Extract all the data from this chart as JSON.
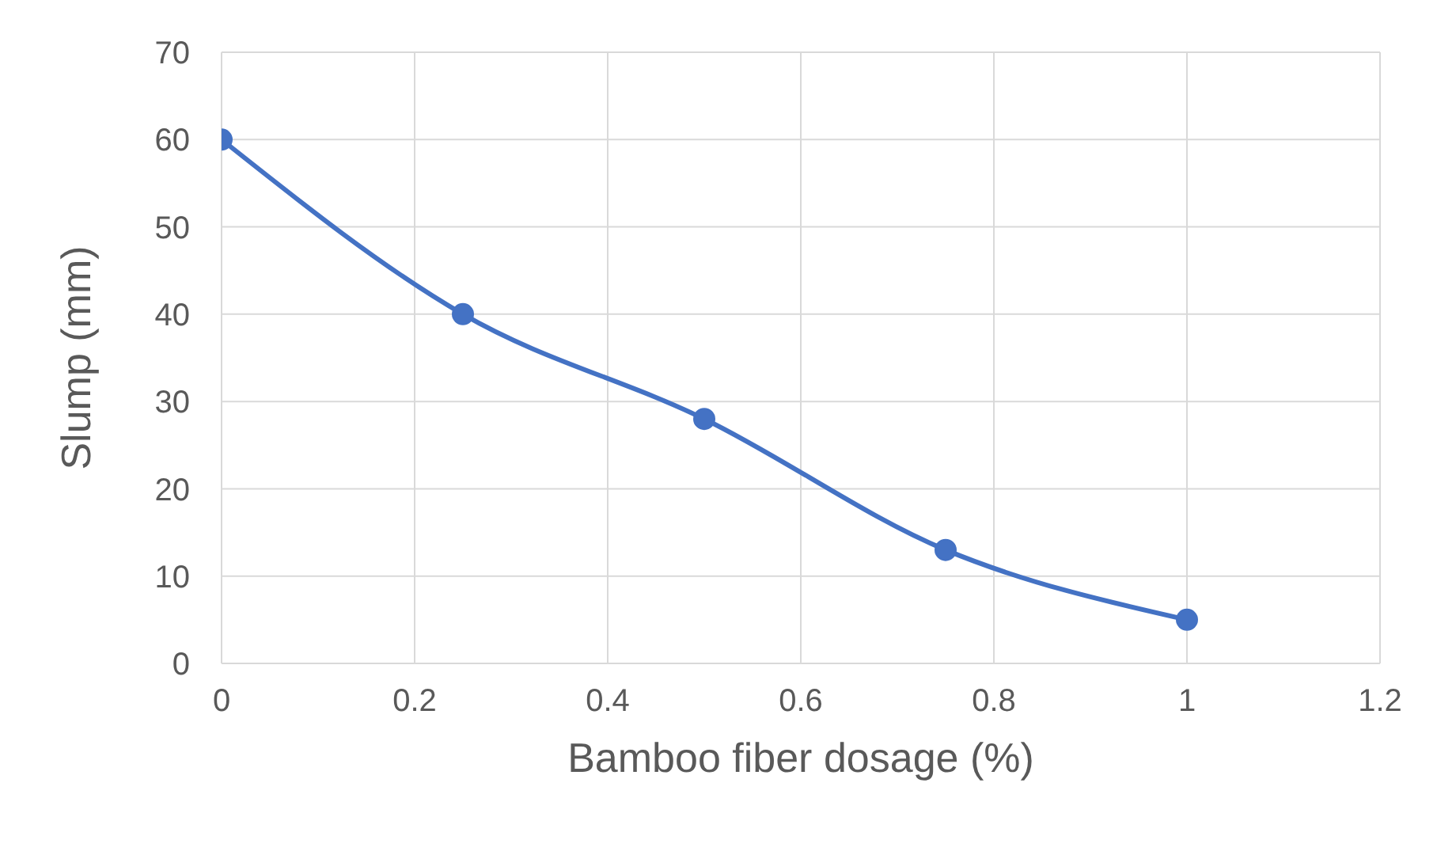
{
  "chart_data": {
    "type": "line",
    "xlabel": "Bamboo fiber dosage (%)",
    "ylabel": "Slump (mm)",
    "x": [
      0,
      0.25,
      0.5,
      0.75,
      1
    ],
    "series": [
      {
        "color": "#4472c4",
        "values": [
          60,
          40,
          28,
          13,
          5
        ]
      }
    ],
    "xlim": [
      0,
      1.2
    ],
    "xticks": [
      0,
      0.2,
      0.4,
      0.6,
      0.8,
      1,
      1.2
    ],
    "ylim": [
      0,
      70
    ],
    "yticks": [
      0,
      10,
      20,
      30,
      40,
      50,
      60,
      70
    ],
    "grid": true,
    "marker": "circle"
  }
}
